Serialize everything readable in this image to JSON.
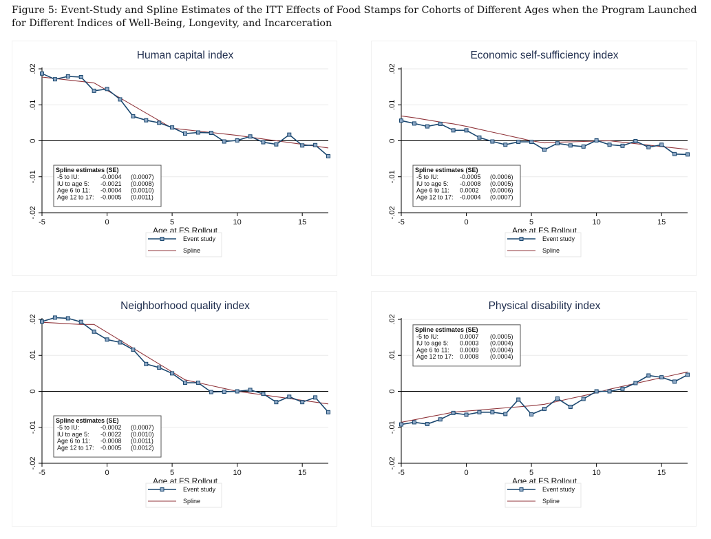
{
  "caption": "Figure 5: Event-Study and Spline Estimates of the ITT Effects of Food Stamps for Cohorts of Different Ages when the Program Launched for Different Indices of Well-Being, Longevity, and Incarceration",
  "colors": {
    "event_study": "#1a476f",
    "spline": "#90353b",
    "grid": "#eaeaea",
    "zero": "#000000"
  },
  "chart_data": [
    {
      "type": "line",
      "title": "Human capital index",
      "xlabel": "Age at FS Rollout",
      "ylabel": "",
      "xlim": [
        -5,
        17
      ],
      "ylim": [
        -0.02,
        0.02
      ],
      "xticks": [
        "-5",
        "0",
        "5",
        "10",
        "15"
      ],
      "yticks": [
        "-.02",
        "-.01",
        "0",
        ".01",
        ".02"
      ],
      "x": [
        -5,
        -4,
        -3,
        -2,
        -1,
        0,
        1,
        2,
        3,
        4,
        5,
        6,
        7,
        8,
        9,
        10,
        11,
        12,
        13,
        14,
        15,
        16,
        17
      ],
      "series": [
        {
          "name": "Event study",
          "values": [
            0.0187,
            0.0171,
            0.0179,
            0.0177,
            0.0139,
            0.0144,
            0.0115,
            0.0068,
            0.0057,
            0.005,
            0.0037,
            0.002,
            0.0023,
            0.0022,
            -0.0002,
            0.0001,
            0.0012,
            -0.0004,
            -0.001,
            0.0017,
            -0.0013,
            -0.0012,
            -0.0043
          ]
        },
        {
          "name": "Spline",
          "values": [
            0.0177,
            0.0173,
            0.0169,
            0.0165,
            0.0161,
            0.014,
            0.0119,
            0.0098,
            0.0077,
            0.0056,
            0.0035,
            0.0031,
            0.0027,
            0.0023,
            0.0019,
            0.0015,
            0.001,
            0.0005,
            0.0,
            -0.0005,
            -0.001,
            -0.0015,
            -0.002
          ]
        }
      ],
      "legend_position": "bottom",
      "spline_box": {
        "position": "bottom-left",
        "title": "Spline estimates (SE)",
        "rows": [
          [
            "-5 to IU:",
            "-0.0004",
            "(0.0007)"
          ],
          [
            "IU to age 5:",
            "-0.0021",
            "(0.0008)"
          ],
          [
            "Age 6 to 11:",
            "-0.0004",
            "(0.0010)"
          ],
          [
            "Age 12 to 17:",
            "-0.0005",
            "(0.0011)"
          ]
        ]
      }
    },
    {
      "type": "line",
      "title": "Economic self-sufficiency index",
      "xlabel": "Age at FS Rollout",
      "ylabel": "",
      "xlim": [
        -5,
        17
      ],
      "ylim": [
        -0.02,
        0.02
      ],
      "xticks": [
        "-5",
        "0",
        "5",
        "10",
        "15"
      ],
      "yticks": [
        "-.02",
        "-.01",
        "0",
        ".01",
        ".02"
      ],
      "x": [
        -5,
        -4,
        -3,
        -2,
        -1,
        0,
        1,
        2,
        3,
        4,
        5,
        6,
        7,
        8,
        9,
        10,
        11,
        12,
        13,
        14,
        15,
        16,
        17
      ],
      "series": [
        {
          "name": "Event study",
          "values": [
            0.0056,
            0.0048,
            0.004,
            0.0047,
            0.0029,
            0.0029,
            0.0009,
            -0.0002,
            -0.0011,
            -0.0003,
            -0.0003,
            -0.0025,
            -0.0007,
            -0.0013,
            -0.0016,
            0.0001,
            -0.0011,
            -0.0014,
            -0.0001,
            -0.0018,
            -0.0011,
            -0.0037,
            -0.0038
          ]
        },
        {
          "name": "Spline",
          "values": [
            0.0069,
            0.0064,
            0.0058,
            0.0052,
            0.0047,
            0.004,
            0.0032,
            0.0024,
            0.0016,
            0.0008,
            0.0,
            -0.0006,
            -0.0004,
            -0.0003,
            -0.0002,
            -0.0001,
            0.0,
            -0.0004,
            -0.0008,
            -0.0012,
            -0.0016,
            -0.002,
            -0.0024
          ]
        }
      ],
      "legend_position": "bottom",
      "spline_box": {
        "position": "bottom-left",
        "title": "Spline estimates (SE)",
        "rows": [
          [
            "-5 to IU:",
            "-0.0005",
            "(0.0006)"
          ],
          [
            "IU to age 5:",
            "-0.0008",
            "(0.0005)"
          ],
          [
            "Age 6 to 11:",
            "0.0002",
            "(0.0006)"
          ],
          [
            "Age 12 to 17:",
            "-0.0004",
            "(0.0007)"
          ]
        ]
      }
    },
    {
      "type": "line",
      "title": "Neighborhood quality index",
      "xlabel": "Age at FS Rollout",
      "ylabel": "",
      "xlim": [
        -5,
        17
      ],
      "ylim": [
        -0.02,
        0.02
      ],
      "xticks": [
        "-5",
        "0",
        "5",
        "10",
        "15"
      ],
      "yticks": [
        "-.02",
        "-.01",
        "0",
        ".01",
        ".02"
      ],
      "x": [
        -5,
        -4,
        -3,
        -2,
        -1,
        0,
        1,
        2,
        3,
        4,
        5,
        6,
        7,
        8,
        9,
        10,
        11,
        12,
        13,
        14,
        15,
        16,
        17
      ],
      "series": [
        {
          "name": "Event study",
          "values": [
            0.0194,
            0.0205,
            0.0203,
            0.0193,
            0.0166,
            0.0144,
            0.0136,
            0.0116,
            0.0076,
            0.0066,
            0.005,
            0.0024,
            0.0024,
            -0.0002,
            -0.0001,
            0.0,
            0.0004,
            -0.0007,
            -0.003,
            -0.0015,
            -0.003,
            -0.0017,
            -0.0058
          ]
        },
        {
          "name": "Spline",
          "values": [
            0.0192,
            0.019,
            0.0188,
            0.0186,
            0.0186,
            0.0164,
            0.0142,
            0.012,
            0.0098,
            0.0076,
            0.0054,
            0.0032,
            0.0024,
            0.0016,
            0.0008,
            0.0,
            -0.0005,
            -0.001,
            -0.0015,
            -0.002,
            -0.0025,
            -0.003,
            -0.0035
          ]
        }
      ],
      "legend_position": "bottom",
      "spline_box": {
        "position": "bottom-left",
        "title": "Spline estimates (SE)",
        "rows": [
          [
            "-5 to IU:",
            "-0.0002",
            "(0.0007)"
          ],
          [
            "IU to age 5:",
            "-0.0022",
            "(0.0010)"
          ],
          [
            "Age 6 to 11:",
            "-0.0008",
            "(0.0011)"
          ],
          [
            "Age 12 to 17:",
            "-0.0005",
            "(0.0012)"
          ]
        ]
      }
    },
    {
      "type": "line",
      "title": "Physical disability index",
      "xlabel": "Age at FS Rollout",
      "ylabel": "",
      "xlim": [
        -5,
        17
      ],
      "ylim": [
        -0.02,
        0.02
      ],
      "xticks": [
        "-5",
        "0",
        "5",
        "10",
        "15"
      ],
      "yticks": [
        "-.02",
        "-.01",
        "0",
        ".01",
        ".02"
      ],
      "x": [
        -5,
        -4,
        -3,
        -2,
        -1,
        0,
        1,
        2,
        3,
        4,
        5,
        6,
        7,
        8,
        9,
        10,
        11,
        12,
        13,
        14,
        15,
        16,
        17
      ],
      "series": [
        {
          "name": "Event study",
          "values": [
            -0.0092,
            -0.0086,
            -0.0091,
            -0.0078,
            -0.006,
            -0.0065,
            -0.0058,
            -0.0058,
            -0.0063,
            -0.0023,
            -0.0064,
            -0.0049,
            -0.002,
            -0.0043,
            -0.0021,
            0.0,
            0.0,
            0.0007,
            0.0023,
            0.0044,
            0.0039,
            0.0027,
            0.0046
          ]
        },
        {
          "name": "Spline",
          "values": [
            -0.0086,
            -0.0079,
            -0.0072,
            -0.0065,
            -0.0058,
            -0.0055,
            -0.0052,
            -0.0049,
            -0.0046,
            -0.0043,
            -0.004,
            -0.0036,
            -0.0028,
            -0.002,
            -0.0012,
            -0.0004,
            0.0006,
            0.0014,
            0.0022,
            0.003,
            0.0038,
            0.0046,
            0.0054
          ]
        }
      ],
      "legend_position": "bottom",
      "spline_box": {
        "position": "top-left",
        "title": "Spline estimates (SE)",
        "rows": [
          [
            "-5 to IU:",
            "0.0007",
            "(0.0005)"
          ],
          [
            "IU to age 5:",
            "0.0003",
            "(0.0004)"
          ],
          [
            "Age 6 to 11:",
            "0.0009",
            "(0.0004)"
          ],
          [
            "Age 12 to 17:",
            "0.0008",
            "(0.0004)"
          ]
        ]
      }
    }
  ]
}
